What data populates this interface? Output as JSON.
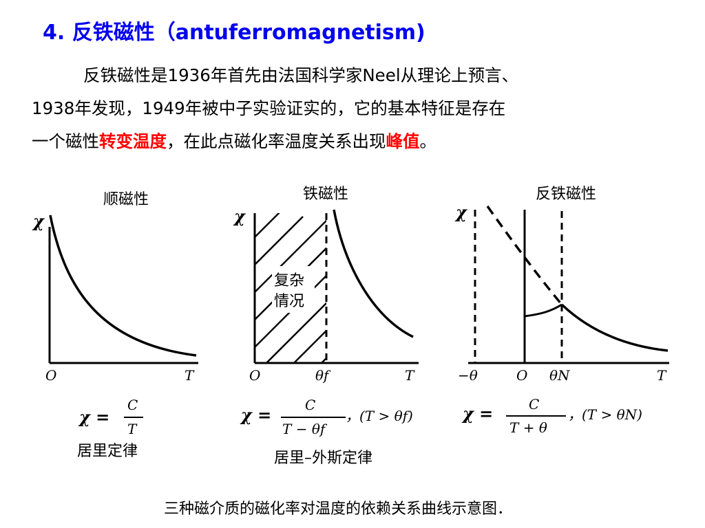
{
  "title": "4. 反铁磁性（antuferromagnetism)",
  "paragraph": {
    "line1": "反铁磁性是1936年首先由法国科学家Neel从理论上预言、",
    "line2": "1938年发现，1949年被中子实验证实的，它的基本特征是存在",
    "line3_a": "一个磁性",
    "line3_highlight1": "转变温度",
    "line3_b": "，在此点磁化率温度关系出现",
    "line3_highlight2": "峰值",
    "line3_c": "。"
  },
  "figure": {
    "caption": "三种磁介质的磁化率对温度的依赖关系曲线示意图．",
    "paramagnetic": {
      "title": "顺磁性",
      "y_label": "χ",
      "origin": "O",
      "x_label": "T",
      "formula_lhs": "χ =",
      "formula_num": "C",
      "formula_den": "T",
      "law": "居里定律"
    },
    "ferromagnetic": {
      "title": "铁磁性",
      "y_label": "χ",
      "origin": "O",
      "theta": "θf",
      "x_label": "T",
      "complex_1": "复杂",
      "complex_2": "情况",
      "formula_lhs": "χ =",
      "formula_num": "C",
      "formula_den": "T − θf",
      "condition": "，(T > θf)",
      "law": "居里–外斯定律"
    },
    "antiferromagnetic": {
      "title": "反铁磁性",
      "y_label": "χ",
      "neg_theta": "−θ",
      "origin": "O",
      "theta_n": "θN",
      "x_label": "T",
      "formula_lhs": "χ =",
      "formula_num": "C",
      "formula_den": "T + θ",
      "condition": "，(T > θN)"
    }
  },
  "colors": {
    "title": "#0000ee",
    "highlight": "#ff0000",
    "text": "#000000"
  }
}
